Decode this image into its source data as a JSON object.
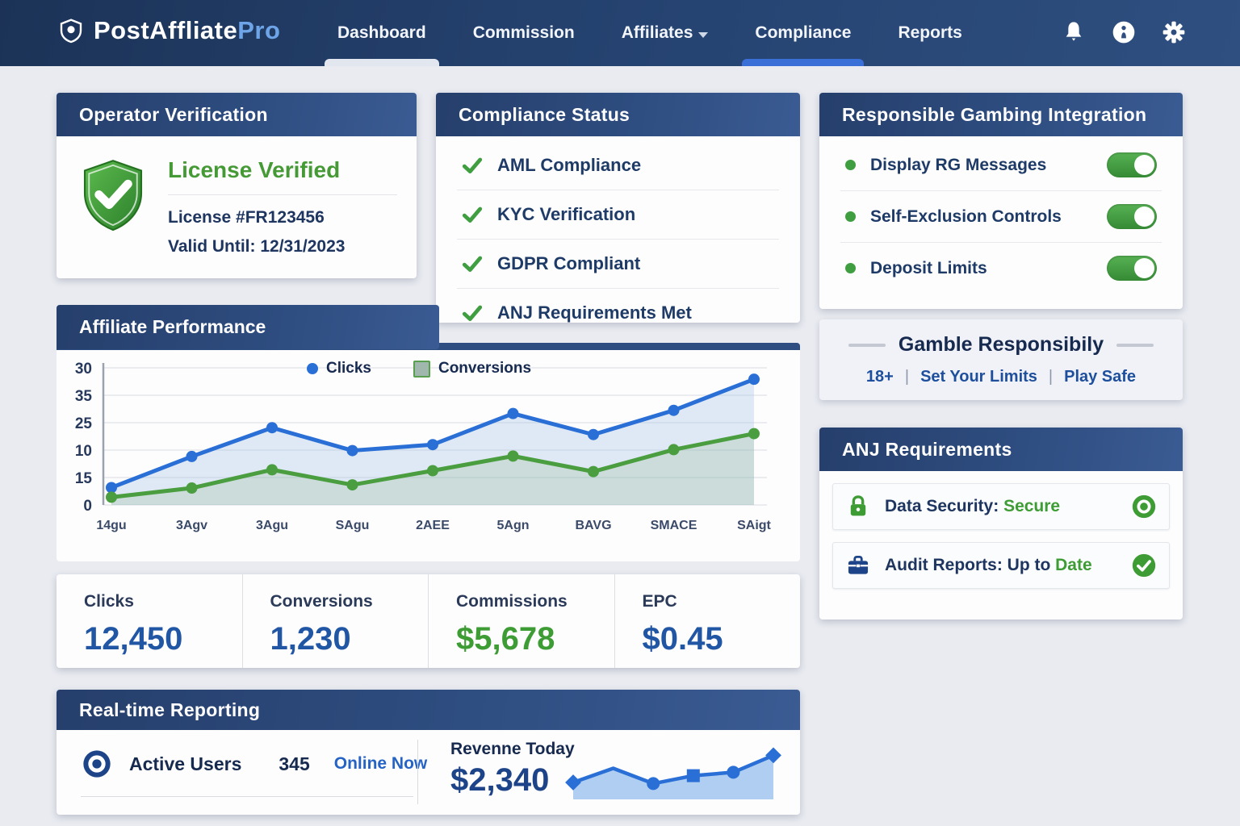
{
  "brand": {
    "name_primary": "PostAffliate",
    "name_accent": "Pro"
  },
  "nav": {
    "items": [
      {
        "label": "Dashboard",
        "indicator": "light",
        "has_caret": false
      },
      {
        "label": "Commission",
        "indicator": "none",
        "has_caret": false
      },
      {
        "label": "Affiliates",
        "indicator": "none",
        "has_caret": true
      },
      {
        "label": "Compliance",
        "indicator": "blue",
        "has_caret": false
      },
      {
        "label": "Reports",
        "indicator": "none",
        "has_caret": false
      }
    ],
    "icons": [
      "bell-icon",
      "info-icon",
      "gear-icon"
    ]
  },
  "operator": {
    "title": "Operator Verification",
    "status": "License Verified",
    "license": "License #FR123456",
    "valid_until": "Valid Until: 12/31/2023"
  },
  "compliance": {
    "title": "Compliance Status",
    "items": [
      "AML Compliance",
      "KYC Verification",
      "GDPR Compliant",
      "ANJ Requirements Met"
    ]
  },
  "rg": {
    "title": "Responsible Gambing Integration",
    "toggles": [
      {
        "label": "Display RG Messages",
        "on": true
      },
      {
        "label": "Self-Exclusion Controls",
        "on": true
      },
      {
        "label": "Deposit Limits",
        "on": true
      }
    ]
  },
  "gamble": {
    "title": "Gamble Responsibily",
    "tags": [
      "18+",
      "Set Your Limits",
      "Play Safe"
    ]
  },
  "anj": {
    "title": "ANJ Requirements",
    "rows": [
      {
        "icon": "lock-icon",
        "label": "Data Security:",
        "value_plain": "",
        "value_green": "Secure",
        "status_icon": "bullseye-icon"
      },
      {
        "icon": "briefcase-icon",
        "label": "Audit Reports:",
        "value_plain": "Up to",
        "value_green": "Date",
        "status_icon": "check-circle-icon"
      }
    ]
  },
  "perf": {
    "title": "Affiliate Performance"
  },
  "stats": [
    {
      "label": "Clicks",
      "value": "12,450",
      "color": "blue"
    },
    {
      "label": "Conversions",
      "value": "1,230",
      "color": "blue"
    },
    {
      "label": "Commissions",
      "value": "$5,678",
      "color": "green"
    },
    {
      "label": "EPC",
      "value": "$0.45",
      "color": "blue"
    }
  ],
  "realtime": {
    "title": "Real-time Reporting",
    "active_users_label": "Active Users",
    "active_users_value": "345",
    "online_label": "Online Now",
    "revenue_label": "Revenne Today",
    "revenue_value": "$2,340"
  },
  "colors": {
    "header_navy": "#2e4d80",
    "accent_blue": "#2a6fd6",
    "accent_green": "#3e9c35",
    "text_navy": "#1e3560",
    "value_blue": "#2156a5"
  },
  "chart_data": [
    {
      "type": "area",
      "title": "Affiliate Performance",
      "legend": [
        "Clicks",
        "Conversions"
      ],
      "legend_position": "top-center",
      "grid": true,
      "ytick_labels_top_to_bottom": [
        "30",
        "35",
        "25",
        "10",
        "15",
        "0"
      ],
      "ylim": [
        0,
        30
      ],
      "categories": [
        "14gu",
        "3Agv",
        "3Agu",
        "SAgu",
        "2AEE",
        "5Agn",
        "BAVG",
        "SMACE",
        "SAigt"
      ],
      "series": [
        {
          "name": "Clicks",
          "color": "#2a6fd6",
          "fill": "rgba(165,195,230,0.35)",
          "values": [
            3.8,
            10.6,
            16.9,
            11.9,
            13.2,
            20.0,
            15.4,
            20.7,
            27.5
          ]
        },
        {
          "name": "Conversions",
          "color": "#4a9e3f",
          "fill": "rgba(150,185,150,0.28)",
          "values": [
            1.7,
            3.7,
            7.7,
            4.4,
            7.5,
            10.7,
            7.3,
            12.1,
            15.6
          ]
        }
      ]
    },
    {
      "type": "area",
      "title": "Revenue Today sparkline",
      "x": [
        0,
        1,
        2,
        3,
        4,
        5
      ],
      "values": [
        30,
        55,
        28,
        42,
        48,
        78
      ],
      "markers": [
        "diamond",
        "none",
        "circle",
        "square",
        "circle",
        "diamond"
      ],
      "line_color": "#2a6fd6",
      "fill_color": "#abcbf1",
      "ylim": [
        0,
        100
      ]
    }
  ]
}
